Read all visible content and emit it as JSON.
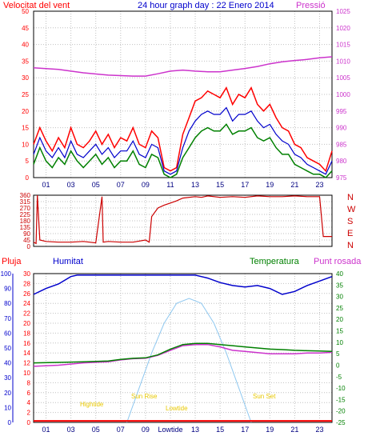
{
  "colors": {
    "wind": "#ff0000",
    "wind_gust": "#ff0000",
    "wind_avg": "#0000cc",
    "wind_low": "#008000",
    "pressure": "#cc33cc",
    "direction": "#cc0000",
    "rain": "#ff0000",
    "humidity": "#0000cc",
    "temperature": "#008000",
    "dewpoint": "#cc33cc",
    "sun": "#8fc8f0",
    "tide": "#e8c800",
    "grid": "#c0c0c0",
    "frame": "#000000"
  },
  "header": {
    "left": "Velocitat del vent",
    "center": "24 hour graph day : 22 Enero 2014",
    "right": "Pressió"
  },
  "x_ticks": [
    "01",
    "03",
    "05",
    "07",
    "09",
    "11",
    "13",
    "15",
    "17",
    "19",
    "21",
    "23"
  ],
  "x_ticks_bottom": [
    "01",
    "03",
    "05",
    "07",
    "09",
    "Lowtide",
    "13",
    "15",
    "17",
    "19",
    "21",
    "23"
  ],
  "direction_letters": [
    "N",
    "W",
    "S",
    "E",
    "N"
  ],
  "lower_titles": {
    "rain": "Pluja",
    "humidity": "Humitat",
    "temperature": "Temperatura",
    "dewpoint": "Punt rosada"
  },
  "annotations": {
    "hightide": "Hightide",
    "sunrise": "Sun Rise",
    "lowtide": "Lowtide",
    "sunset": "Sun Set"
  },
  "chart_data": [
    {
      "type": "line",
      "name": "wind-pressure",
      "x_range": [
        0,
        24
      ],
      "left_axis": {
        "label": "Velocitat del vent",
        "ylim": [
          0,
          50
        ],
        "ticks": [
          0,
          5,
          10,
          15,
          20,
          25,
          30,
          35,
          40,
          45,
          50
        ]
      },
      "right_axis": {
        "label": "Pressió",
        "ylim": [
          975,
          1025
        ],
        "ticks": [
          975,
          980,
          985,
          990,
          995,
          1000,
          1005,
          1010,
          1015,
          1020,
          1025
        ]
      },
      "wind_gust": {
        "x": [
          0,
          0.5,
          1,
          1.5,
          2,
          2.5,
          3,
          3.5,
          4,
          4.5,
          5,
          5.5,
          6,
          6.5,
          7,
          7.5,
          8,
          8.5,
          9,
          9.5,
          10,
          10.5,
          11,
          11.5,
          12,
          12.5,
          13,
          13.5,
          14,
          14.5,
          15,
          15.5,
          16,
          16.5,
          17,
          17.5,
          18,
          18.5,
          19,
          19.5,
          20,
          20.5,
          21,
          21.5,
          22,
          22.5,
          23,
          23.5,
          24
        ],
        "y": [
          10,
          15,
          11,
          8,
          12,
          9,
          15,
          10,
          9,
          11,
          14,
          10,
          13,
          9,
          12,
          11,
          15,
          10,
          9,
          14,
          12,
          3,
          2,
          3,
          13,
          18,
          23,
          24,
          26,
          25,
          24,
          27,
          22,
          25,
          24,
          27,
          22,
          20,
          22,
          18,
          15,
          14,
          10,
          9,
          6,
          5,
          4,
          2,
          8
        ]
      },
      "wind_avg": {
        "x": [
          0,
          0.5,
          1,
          1.5,
          2,
          2.5,
          3,
          3.5,
          4,
          4.5,
          5,
          5.5,
          6,
          6.5,
          7,
          7.5,
          8,
          8.5,
          9,
          9.5,
          10,
          10.5,
          11,
          11.5,
          12,
          12.5,
          13,
          13.5,
          14,
          14.5,
          15,
          15.5,
          16,
          16.5,
          17,
          17.5,
          18,
          18.5,
          19,
          19.5,
          20,
          20.5,
          21,
          21.5,
          22,
          22.5,
          23,
          23.5,
          24
        ],
        "y": [
          7,
          12,
          8,
          6,
          9,
          6,
          11,
          7,
          6,
          8,
          10,
          7,
          9,
          6,
          8,
          8,
          11,
          7,
          6,
          10,
          9,
          2,
          1,
          2,
          9,
          14,
          17,
          19,
          20,
          19,
          19,
          21,
          17,
          19,
          19,
          20,
          17,
          15,
          16,
          13,
          11,
          10,
          7,
          6,
          4,
          3,
          2,
          1,
          5
        ]
      },
      "wind_low": {
        "x": [
          0,
          0.5,
          1,
          1.5,
          2,
          2.5,
          3,
          3.5,
          4,
          4.5,
          5,
          5.5,
          6,
          6.5,
          7,
          7.5,
          8,
          8.5,
          9,
          9.5,
          10,
          10.5,
          11,
          11.5,
          12,
          12.5,
          13,
          13.5,
          14,
          14.5,
          15,
          15.5,
          16,
          16.5,
          17,
          17.5,
          18,
          18.5,
          19,
          19.5,
          20,
          20.5,
          21,
          21.5,
          22,
          22.5,
          23,
          23.5,
          24
        ],
        "y": [
          4,
          9,
          5,
          3,
          6,
          4,
          8,
          5,
          3,
          5,
          7,
          4,
          6,
          3,
          5,
          5,
          8,
          4,
          3,
          7,
          6,
          1,
          0,
          1,
          6,
          9,
          12,
          14,
          15,
          14,
          14,
          16,
          13,
          14,
          14,
          15,
          12,
          11,
          12,
          9,
          7,
          7,
          4,
          3,
          2,
          1,
          1,
          0,
          2
        ]
      },
      "pressure": {
        "x": [
          0,
          2,
          4,
          6,
          8,
          9,
          10,
          11,
          12,
          13,
          14,
          15,
          16,
          17,
          18,
          19,
          20,
          21,
          22,
          23,
          24
        ],
        "y": [
          1008,
          1007.5,
          1006.5,
          1005.8,
          1005.5,
          1005.5,
          1006.2,
          1007,
          1007.3,
          1007,
          1006.8,
          1006.8,
          1007.3,
          1007.8,
          1008.4,
          1009.2,
          1009.8,
          1010.2,
          1010.5,
          1011,
          1011.3
        ]
      }
    },
    {
      "type": "line",
      "name": "wind-direction",
      "x_range": [
        0,
        24
      ],
      "left_axis": {
        "ylim": [
          0,
          360
        ],
        "ticks": [
          0,
          45,
          90,
          135,
          180,
          225,
          270,
          315,
          360
        ]
      },
      "right_axis": {
        "labels": [
          "N",
          "W",
          "S",
          "E",
          "N"
        ]
      },
      "direction": {
        "x": [
          0,
          0.2,
          0.3,
          0.5,
          1,
          2,
          3,
          4,
          5,
          5.5,
          5.6,
          6,
          7,
          8,
          9,
          9.3,
          9.5,
          10,
          10.5,
          11,
          11.5,
          12,
          13,
          13.5,
          14,
          15,
          16,
          17,
          18,
          19,
          20,
          21,
          22,
          23,
          23.3,
          24
        ],
        "y": [
          30,
          20,
          360,
          45,
          35,
          30,
          30,
          35,
          25,
          350,
          30,
          35,
          30,
          30,
          45,
          30,
          210,
          270,
          290,
          305,
          320,
          340,
          350,
          345,
          355,
          345,
          350,
          345,
          355,
          350,
          350,
          355,
          350,
          350,
          70,
          70
        ]
      }
    },
    {
      "type": "line",
      "name": "temp-humidity-rain",
      "x_range": [
        0,
        24
      ],
      "axes": [
        {
          "label": "Pluja",
          "ylim": [
            0,
            30
          ],
          "ticks": [
            0,
            2,
            4,
            6,
            8,
            10,
            12,
            14,
            16,
            18,
            20,
            22,
            24,
            26,
            28,
            30
          ]
        },
        {
          "label": "Humitat",
          "ylim": [
            0,
            100
          ],
          "ticks": [
            0,
            10,
            20,
            30,
            40,
            50,
            60,
            70,
            80,
            90,
            100
          ]
        },
        {
          "label": "Temperatura",
          "ylim": [
            -25,
            40
          ],
          "ticks": [
            -25,
            -20,
            -15,
            -10,
            -5,
            0,
            5,
            10,
            15,
            20,
            25,
            30,
            35,
            40
          ]
        }
      ],
      "humidity": {
        "x": [
          0,
          1,
          2,
          3,
          3.5,
          4,
          5,
          6,
          7,
          8,
          9,
          10,
          11,
          12,
          13,
          14,
          15,
          16,
          17,
          18,
          19,
          20,
          21,
          22,
          23,
          24
        ],
        "y": [
          86,
          90,
          93,
          98,
          99,
          99,
          99,
          99,
          99,
          99,
          99,
          99,
          99,
          99,
          99,
          97,
          94,
          92,
          91,
          92,
          90,
          86,
          88,
          92,
          95,
          98
        ]
      },
      "temperature": {
        "x": [
          0,
          2,
          4,
          6,
          7,
          8,
          9,
          10,
          11,
          12,
          13,
          14,
          15,
          16,
          17,
          18,
          19,
          20,
          21,
          22,
          23,
          24
        ],
        "y": [
          1,
          1.2,
          1.5,
          1.8,
          2.5,
          3,
          3.2,
          4.5,
          7,
          9,
          9.5,
          9.5,
          9,
          8.5,
          8,
          7.5,
          7,
          6.8,
          6.5,
          6.3,
          6.2,
          6
        ]
      },
      "dewpoint": {
        "x": [
          0,
          2,
          4,
          6,
          7,
          8,
          9,
          10,
          11,
          12,
          13,
          14,
          15,
          16,
          17,
          18,
          19,
          20,
          21,
          22,
          23,
          24
        ],
        "y": [
          -0.5,
          0,
          1,
          1.5,
          2.3,
          2.8,
          3,
          4.3,
          6.5,
          8.5,
          9,
          9,
          8,
          6.5,
          6,
          5.5,
          5,
          5,
          5,
          5.3,
          5.3,
          5.6
        ]
      },
      "rain": {
        "x": [
          0,
          24
        ],
        "y": [
          0.3,
          0.3
        ]
      },
      "sun": {
        "x": [
          7.5,
          8.5,
          9.5,
          10.5,
          11.5,
          12.5,
          13.5,
          14.5,
          15.5,
          16.5,
          17.5
        ],
        "y": [
          0,
          7,
          14,
          20,
          24,
          25,
          24,
          20,
          14,
          7,
          0
        ]
      }
    }
  ]
}
